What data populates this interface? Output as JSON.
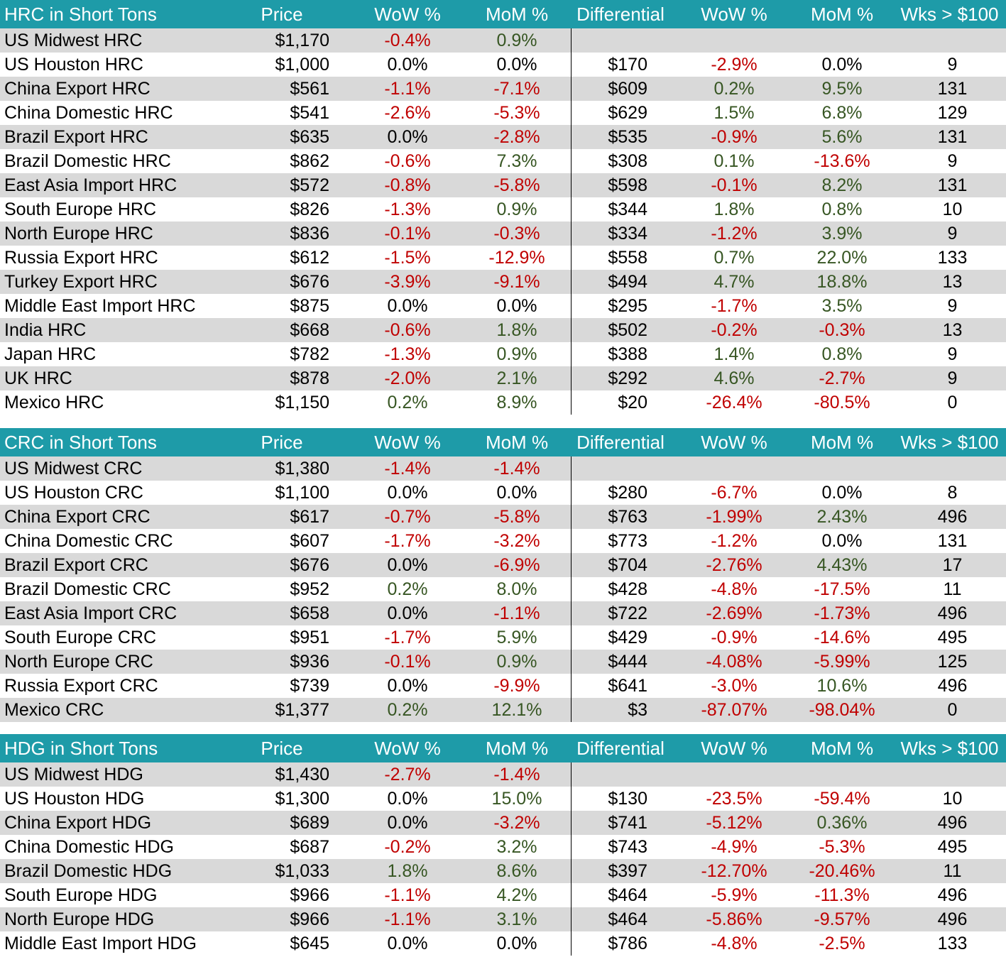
{
  "sections": [
    {
      "header": {
        "title": "HRC in Short Tons",
        "price": "Price",
        "wow": "WoW %",
        "mom": "MoM %",
        "differential": "Differential",
        "dwow": "WoW %",
        "dmom": "MoM %",
        "wks": "Wks > $100"
      },
      "rows": [
        {
          "name": "US Midwest HRC",
          "price": "$1,170",
          "wow": "-0.4%",
          "mom": "0.9%",
          "diff": "",
          "dwow": "",
          "dmom": "",
          "wks": ""
        },
        {
          "name": "US Houston HRC",
          "price": "$1,000",
          "wow": "0.0%",
          "mom": "0.0%",
          "diff": "$170",
          "dwow": "-2.9%",
          "dmom": "0.0%",
          "wks": "9"
        },
        {
          "name": "China Export HRC",
          "price": "$561",
          "wow": "-1.1%",
          "mom": "-7.1%",
          "diff": "$609",
          "dwow": "0.2%",
          "dmom": "9.5%",
          "wks": "131"
        },
        {
          "name": "China Domestic HRC",
          "price": "$541",
          "wow": "-2.6%",
          "mom": "-5.3%",
          "diff": "$629",
          "dwow": "1.5%",
          "dmom": "6.8%",
          "wks": "129"
        },
        {
          "name": "Brazil Export HRC",
          "price": "$635",
          "wow": "0.0%",
          "mom": "-2.8%",
          "diff": "$535",
          "dwow": "-0.9%",
          "dmom": "5.6%",
          "wks": "131"
        },
        {
          "name": "Brazil Domestic HRC",
          "price": "$862",
          "wow": "-0.6%",
          "mom": "7.3%",
          "diff": "$308",
          "dwow": "0.1%",
          "dmom": "-13.6%",
          "wks": "9"
        },
        {
          "name": "East Asia Import HRC",
          "price": "$572",
          "wow": "-0.8%",
          "mom": "-5.8%",
          "diff": "$598",
          "dwow": "-0.1%",
          "dmom": "8.2%",
          "wks": "131"
        },
        {
          "name": "South Europe HRC",
          "price": "$826",
          "wow": "-1.3%",
          "mom": "0.9%",
          "diff": "$344",
          "dwow": "1.8%",
          "dmom": "0.8%",
          "wks": "10"
        },
        {
          "name": "North Europe HRC",
          "price": "$836",
          "wow": "-0.1%",
          "mom": "-0.3%",
          "diff": "$334",
          "dwow": "-1.2%",
          "dmom": "3.9%",
          "wks": "9"
        },
        {
          "name": "Russia Export HRC",
          "price": "$612",
          "wow": "-1.5%",
          "mom": "-12.9%",
          "diff": "$558",
          "dwow": "0.7%",
          "dmom": "22.0%",
          "wks": "133"
        },
        {
          "name": "Turkey Export HRC",
          "price": "$676",
          "wow": "-3.9%",
          "mom": "-9.1%",
          "diff": "$494",
          "dwow": "4.7%",
          "dmom": "18.8%",
          "wks": "13"
        },
        {
          "name": "Middle East Import HRC",
          "price": "$875",
          "wow": "0.0%",
          "mom": "0.0%",
          "diff": "$295",
          "dwow": "-1.7%",
          "dmom": "3.5%",
          "wks": "9"
        },
        {
          "name": "India HRC",
          "price": "$668",
          "wow": "-0.6%",
          "mom": "1.8%",
          "diff": "$502",
          "dwow": "-0.2%",
          "dmom": "-0.3%",
          "wks": "13"
        },
        {
          "name": "Japan HRC",
          "price": "$782",
          "wow": "-1.3%",
          "mom": "0.9%",
          "diff": "$388",
          "dwow": "1.4%",
          "dmom": "0.8%",
          "wks": "9"
        },
        {
          "name": "UK HRC",
          "price": "$878",
          "wow": "-2.0%",
          "mom": "2.1%",
          "diff": "$292",
          "dwow": "4.6%",
          "dmom": "-2.7%",
          "wks": "9"
        },
        {
          "name": "Mexico HRC",
          "price": "$1,150",
          "wow": "0.2%",
          "mom": "8.9%",
          "diff": "$20",
          "dwow": "-26.4%",
          "dmom": "-80.5%",
          "wks": "0"
        }
      ]
    },
    {
      "header": {
        "title": "CRC in Short Tons",
        "price": "Price",
        "wow": "WoW %",
        "mom": "MoM %",
        "differential": "Differential",
        "dwow": "WoW %",
        "dmom": "MoM %",
        "wks": "Wks > $100"
      },
      "rows": [
        {
          "name": "US Midwest CRC",
          "price": "$1,380",
          "wow": "-1.4%",
          "mom": "-1.4%",
          "diff": "",
          "dwow": "",
          "dmom": "",
          "wks": ""
        },
        {
          "name": "US Houston CRC",
          "price": "$1,100",
          "wow": "0.0%",
          "mom": "0.0%",
          "diff": "$280",
          "dwow": "-6.7%",
          "dmom": "0.0%",
          "wks": "8"
        },
        {
          "name": "China Export CRC",
          "price": "$617",
          "wow": "-0.7%",
          "mom": "-5.8%",
          "diff": "$763",
          "dwow": "-1.99%",
          "dmom": "2.43%",
          "wks": "496"
        },
        {
          "name": "China Domestic CRC",
          "price": "$607",
          "wow": "-1.7%",
          "mom": "-3.2%",
          "diff": "$773",
          "dwow": "-1.2%",
          "dmom": "0.0%",
          "wks": "131"
        },
        {
          "name": "Brazil Export CRC",
          "price": "$676",
          "wow": "0.0%",
          "mom": "-6.9%",
          "diff": "$704",
          "dwow": "-2.76%",
          "dmom": "4.43%",
          "wks": "17"
        },
        {
          "name": "Brazil Domestic CRC",
          "price": "$952",
          "wow": "0.2%",
          "mom": "8.0%",
          "diff": "$428",
          "dwow": "-4.8%",
          "dmom": "-17.5%",
          "wks": "11"
        },
        {
          "name": "East Asia Import CRC",
          "price": "$658",
          "wow": "0.0%",
          "mom": "-1.1%",
          "diff": "$722",
          "dwow": "-2.69%",
          "dmom": "-1.73%",
          "wks": "496"
        },
        {
          "name": "South Europe CRC",
          "price": "$951",
          "wow": "-1.7%",
          "mom": "5.9%",
          "diff": "$429",
          "dwow": "-0.9%",
          "dmom": "-14.6%",
          "wks": "495"
        },
        {
          "name": "North Europe CRC",
          "price": "$936",
          "wow": "-0.1%",
          "mom": "0.9%",
          "diff": "$444",
          "dwow": "-4.08%",
          "dmom": "-5.99%",
          "wks": "125"
        },
        {
          "name": "Russia Export CRC",
          "price": "$739",
          "wow": "0.0%",
          "mom": "-9.9%",
          "diff": "$641",
          "dwow": "-3.0%",
          "dmom": "10.6%",
          "wks": "496"
        },
        {
          "name": "Mexico CRC",
          "price": "$1,377",
          "wow": "0.2%",
          "mom": "12.1%",
          "diff": "$3",
          "dwow": "-87.07%",
          "dmom": "-98.04%",
          "wks": "0"
        }
      ]
    },
    {
      "header": {
        "title": "HDG in Short Tons",
        "price": "Price",
        "wow": "WoW %",
        "mom": "MoM %",
        "differential": "Differential",
        "dwow": "WoW %",
        "dmom": "MoM %",
        "wks": "Wks > $100"
      },
      "rows": [
        {
          "name": "US Midwest HDG",
          "price": "$1,430",
          "wow": "-2.7%",
          "mom": "-1.4%",
          "diff": "",
          "dwow": "",
          "dmom": "",
          "wks": ""
        },
        {
          "name": "US Houston HDG",
          "price": "$1,300",
          "wow": "0.0%",
          "mom": "15.0%",
          "diff": "$130",
          "dwow": "-23.5%",
          "dmom": "-59.4%",
          "wks": "10"
        },
        {
          "name": "China Export HDG",
          "price": "$689",
          "wow": "0.0%",
          "mom": "-3.2%",
          "diff": "$741",
          "dwow": "-5.12%",
          "dmom": "0.36%",
          "wks": "496"
        },
        {
          "name": "China Domestic HDG",
          "price": "$687",
          "wow": "-0.2%",
          "mom": "3.2%",
          "diff": "$743",
          "dwow": "-4.9%",
          "dmom": "-5.3%",
          "wks": "495"
        },
        {
          "name": "Brazil Domestic HDG",
          "price": "$1,033",
          "wow": "1.8%",
          "mom": "8.6%",
          "diff": "$397",
          "dwow": "-12.70%",
          "dmom": "-20.46%",
          "wks": "11"
        },
        {
          "name": "South Europe HDG",
          "price": "$966",
          "wow": "-1.1%",
          "mom": "4.2%",
          "diff": "$464",
          "dwow": "-5.9%",
          "dmom": "-11.3%",
          "wks": "496"
        },
        {
          "name": "North Europe HDG",
          "price": "$966",
          "wow": "-1.1%",
          "mom": "3.1%",
          "diff": "$464",
          "dwow": "-5.86%",
          "dmom": "-9.57%",
          "wks": "496"
        },
        {
          "name": "Middle East Import HDG",
          "price": "$645",
          "wow": "0.0%",
          "mom": "0.0%",
          "diff": "$786",
          "dwow": "-4.8%",
          "dmom": "-2.5%",
          "wks": "133"
        }
      ]
    }
  ],
  "colors": {
    "header_bg": "#1e9ba8",
    "negative": "#c00000",
    "positive": "#375623",
    "shaded_row": "#d9d9d9"
  }
}
